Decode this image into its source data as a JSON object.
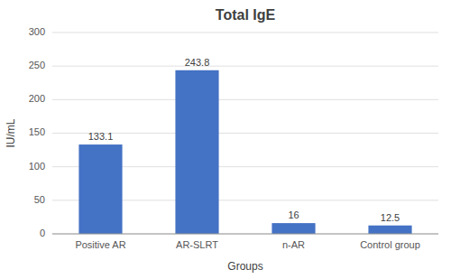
{
  "chart_data": {
    "type": "bar",
    "title": "Total IgE",
    "categories": [
      "Positive AR",
      "AR-SLRT",
      "n-AR",
      "Control group"
    ],
    "values": [
      133.1,
      243.8,
      16,
      12.5
    ],
    "color": "#4472C4",
    "xlabel": "Groups",
    "ylabel": "IU/mL",
    "ylim": [
      0,
      300
    ],
    "yticks": [
      0,
      50,
      100,
      150,
      200,
      250,
      300
    ],
    "grid": true,
    "data_labels": true
  }
}
